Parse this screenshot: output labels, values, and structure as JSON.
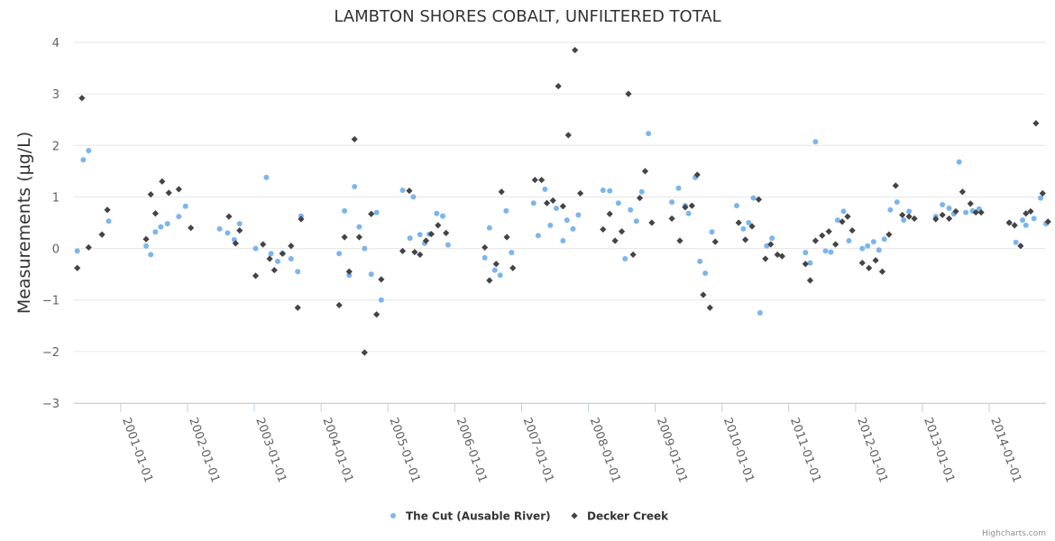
{
  "chart_data": {
    "type": "scatter",
    "title": "LAMBTON SHORES COBALT, UNFILTERED TOTAL",
    "ylabel": "Measurements (µg/L)",
    "xlabel": "",
    "ylim": [
      -3,
      4
    ],
    "yticks": [
      -3,
      -2,
      -1,
      0,
      1,
      2,
      3,
      4
    ],
    "xlim": [
      2000.3,
      2014.85
    ],
    "xticks": [
      {
        "value": 2001.0,
        "label": "2001-01-01"
      },
      {
        "value": 2002.0,
        "label": "2002-01-01"
      },
      {
        "value": 2003.0,
        "label": "2003-01-01"
      },
      {
        "value": 2004.0,
        "label": "2004-01-01"
      },
      {
        "value": 2005.0,
        "label": "2005-01-01"
      },
      {
        "value": 2006.0,
        "label": "2006-01-01"
      },
      {
        "value": 2007.0,
        "label": "2007-01-01"
      },
      {
        "value": 2008.0,
        "label": "2008-01-01"
      },
      {
        "value": 2009.0,
        "label": "2009-01-01"
      },
      {
        "value": 2010.0,
        "label": "2010-01-01"
      },
      {
        "value": 2011.0,
        "label": "2011-01-01"
      },
      {
        "value": 2012.0,
        "label": "2012-01-01"
      },
      {
        "value": 2013.0,
        "label": "2013-01-01"
      },
      {
        "value": 2014.0,
        "label": "2014-01-01"
      }
    ],
    "grid": true,
    "legend_position": "bottom-center",
    "series": [
      {
        "name": "The Cut (Ausable River)",
        "color": "#7cb5ec",
        "marker": "circle",
        "points": [
          [
            2000.35,
            -0.05
          ],
          [
            2000.44,
            1.72
          ],
          [
            2000.52,
            1.9
          ],
          [
            2000.82,
            0.53
          ],
          [
            2001.38,
            0.05
          ],
          [
            2001.45,
            -0.12
          ],
          [
            2001.52,
            0.32
          ],
          [
            2001.6,
            0.42
          ],
          [
            2001.7,
            0.48
          ],
          [
            2001.87,
            0.62
          ],
          [
            2001.97,
            0.82
          ],
          [
            2002.48,
            0.38
          ],
          [
            2002.6,
            0.3
          ],
          [
            2002.7,
            0.17
          ],
          [
            2002.78,
            0.48
          ],
          [
            2003.02,
            0.0
          ],
          [
            2003.18,
            1.38
          ],
          [
            2003.25,
            -0.1
          ],
          [
            2003.35,
            -0.25
          ],
          [
            2003.43,
            -0.1
          ],
          [
            2003.55,
            -0.2
          ],
          [
            2003.65,
            -0.45
          ],
          [
            2003.7,
            0.63
          ],
          [
            2004.27,
            -0.1
          ],
          [
            2004.35,
            0.73
          ],
          [
            2004.42,
            -0.52
          ],
          [
            2004.5,
            1.2
          ],
          [
            2004.57,
            0.42
          ],
          [
            2004.65,
            0.0
          ],
          [
            2004.75,
            -0.5
          ],
          [
            2004.83,
            0.7
          ],
          [
            2004.9,
            -1.0
          ],
          [
            2005.22,
            1.13
          ],
          [
            2005.33,
            0.2
          ],
          [
            2005.38,
            1.0
          ],
          [
            2005.48,
            0.27
          ],
          [
            2005.55,
            0.1
          ],
          [
            2005.62,
            0.28
          ],
          [
            2005.73,
            0.68
          ],
          [
            2005.82,
            0.63
          ],
          [
            2005.9,
            0.07
          ],
          [
            2006.45,
            -0.18
          ],
          [
            2006.52,
            0.4
          ],
          [
            2006.6,
            -0.42
          ],
          [
            2006.68,
            -0.52
          ],
          [
            2006.77,
            0.73
          ],
          [
            2006.85,
            -0.08
          ],
          [
            2007.18,
            0.88
          ],
          [
            2007.25,
            0.25
          ],
          [
            2007.35,
            1.15
          ],
          [
            2007.43,
            0.45
          ],
          [
            2007.52,
            0.78
          ],
          [
            2007.62,
            0.15
          ],
          [
            2007.68,
            0.55
          ],
          [
            2007.77,
            0.38
          ],
          [
            2007.85,
            0.65
          ],
          [
            2008.22,
            1.13
          ],
          [
            2008.32,
            1.12
          ],
          [
            2008.45,
            0.88
          ],
          [
            2008.55,
            -0.2
          ],
          [
            2008.63,
            0.75
          ],
          [
            2008.72,
            0.53
          ],
          [
            2008.8,
            1.1
          ],
          [
            2008.9,
            2.23
          ],
          [
            2009.25,
            0.9
          ],
          [
            2009.35,
            1.17
          ],
          [
            2009.45,
            0.83
          ],
          [
            2009.5,
            0.68
          ],
          [
            2009.6,
            1.38
          ],
          [
            2009.67,
            -0.25
          ],
          [
            2009.75,
            -0.48
          ],
          [
            2009.85,
            0.32
          ],
          [
            2010.22,
            0.83
          ],
          [
            2010.32,
            0.38
          ],
          [
            2010.4,
            0.5
          ],
          [
            2010.47,
            0.98
          ],
          [
            2010.57,
            -1.25
          ],
          [
            2010.67,
            0.05
          ],
          [
            2010.75,
            0.2
          ],
          [
            2011.25,
            -0.08
          ],
          [
            2011.32,
            -0.28
          ],
          [
            2011.4,
            2.07
          ],
          [
            2011.55,
            -0.05
          ],
          [
            2011.63,
            -0.07
          ],
          [
            2011.73,
            0.55
          ],
          [
            2011.82,
            0.72
          ],
          [
            2011.9,
            0.15
          ],
          [
            2012.1,
            0.0
          ],
          [
            2012.18,
            0.05
          ],
          [
            2012.27,
            0.13
          ],
          [
            2012.35,
            -0.03
          ],
          [
            2012.43,
            0.18
          ],
          [
            2012.52,
            0.75
          ],
          [
            2012.62,
            0.9
          ],
          [
            2012.72,
            0.55
          ],
          [
            2012.8,
            0.72
          ],
          [
            2013.2,
            0.62
          ],
          [
            2013.3,
            0.85
          ],
          [
            2013.4,
            0.78
          ],
          [
            2013.47,
            0.67
          ],
          [
            2013.55,
            1.68
          ],
          [
            2013.65,
            0.7
          ],
          [
            2013.75,
            0.73
          ],
          [
            2013.85,
            0.77
          ],
          [
            2014.3,
            0.5
          ],
          [
            2014.4,
            0.12
          ],
          [
            2014.5,
            0.55
          ],
          [
            2014.55,
            0.45
          ],
          [
            2014.67,
            0.58
          ],
          [
            2014.77,
            0.98
          ],
          [
            2014.85,
            0.48
          ]
        ]
      },
      {
        "name": "Decker Creek",
        "color": "#434348",
        "marker": "diamond",
        "points": [
          [
            2000.35,
            -0.38
          ],
          [
            2000.42,
            2.92
          ],
          [
            2000.52,
            0.02
          ],
          [
            2000.72,
            0.27
          ],
          [
            2000.8,
            0.75
          ],
          [
            2001.38,
            0.18
          ],
          [
            2001.45,
            1.05
          ],
          [
            2001.52,
            0.68
          ],
          [
            2001.62,
            1.3
          ],
          [
            2001.72,
            1.08
          ],
          [
            2001.87,
            1.15
          ],
          [
            2002.05,
            0.4
          ],
          [
            2002.62,
            0.62
          ],
          [
            2002.72,
            0.1
          ],
          [
            2002.78,
            0.35
          ],
          [
            2003.02,
            -0.53
          ],
          [
            2003.13,
            0.08
          ],
          [
            2003.23,
            -0.2
          ],
          [
            2003.3,
            -0.42
          ],
          [
            2003.42,
            -0.1
          ],
          [
            2003.55,
            0.05
          ],
          [
            2003.65,
            -1.15
          ],
          [
            2003.7,
            0.57
          ],
          [
            2004.27,
            -1.1
          ],
          [
            2004.35,
            0.22
          ],
          [
            2004.42,
            -0.45
          ],
          [
            2004.5,
            2.12
          ],
          [
            2004.57,
            0.22
          ],
          [
            2004.65,
            -2.02
          ],
          [
            2004.75,
            0.67
          ],
          [
            2004.83,
            -1.28
          ],
          [
            2004.9,
            -0.6
          ],
          [
            2005.22,
            -0.05
          ],
          [
            2005.32,
            1.12
          ],
          [
            2005.4,
            -0.07
          ],
          [
            2005.48,
            -0.12
          ],
          [
            2005.57,
            0.15
          ],
          [
            2005.65,
            0.28
          ],
          [
            2005.75,
            0.45
          ],
          [
            2005.87,
            0.3
          ],
          [
            2006.45,
            0.02
          ],
          [
            2006.52,
            -0.62
          ],
          [
            2006.62,
            -0.3
          ],
          [
            2006.7,
            1.1
          ],
          [
            2006.78,
            0.22
          ],
          [
            2006.87,
            -0.38
          ],
          [
            2007.2,
            1.33
          ],
          [
            2007.3,
            1.33
          ],
          [
            2007.38,
            0.88
          ],
          [
            2007.47,
            0.93
          ],
          [
            2007.55,
            3.15
          ],
          [
            2007.62,
            0.82
          ],
          [
            2007.7,
            2.2
          ],
          [
            2007.8,
            3.85
          ],
          [
            2007.88,
            1.07
          ],
          [
            2008.22,
            0.37
          ],
          [
            2008.32,
            0.67
          ],
          [
            2008.4,
            0.15
          ],
          [
            2008.5,
            0.33
          ],
          [
            2008.6,
            3.0
          ],
          [
            2008.67,
            -0.12
          ],
          [
            2008.77,
            0.98
          ],
          [
            2008.85,
            1.5
          ],
          [
            2008.95,
            0.5
          ],
          [
            2009.25,
            0.58
          ],
          [
            2009.37,
            0.15
          ],
          [
            2009.45,
            0.8
          ],
          [
            2009.55,
            0.83
          ],
          [
            2009.63,
            1.43
          ],
          [
            2009.72,
            -0.9
          ],
          [
            2009.82,
            -1.15
          ],
          [
            2009.9,
            0.13
          ],
          [
            2010.25,
            0.5
          ],
          [
            2010.35,
            0.17
          ],
          [
            2010.45,
            0.43
          ],
          [
            2010.55,
            0.95
          ],
          [
            2010.65,
            -0.2
          ],
          [
            2010.73,
            0.08
          ],
          [
            2010.83,
            -0.12
          ],
          [
            2010.9,
            -0.15
          ],
          [
            2011.25,
            -0.3
          ],
          [
            2011.32,
            -0.62
          ],
          [
            2011.4,
            0.15
          ],
          [
            2011.5,
            0.25
          ],
          [
            2011.6,
            0.33
          ],
          [
            2011.7,
            0.08
          ],
          [
            2011.8,
            0.52
          ],
          [
            2011.88,
            0.62
          ],
          [
            2011.95,
            0.35
          ],
          [
            2012.1,
            -0.28
          ],
          [
            2012.2,
            -0.38
          ],
          [
            2012.3,
            -0.23
          ],
          [
            2012.4,
            -0.45
          ],
          [
            2012.5,
            0.27
          ],
          [
            2012.6,
            1.22
          ],
          [
            2012.7,
            0.65
          ],
          [
            2012.8,
            0.62
          ],
          [
            2012.88,
            0.58
          ],
          [
            2013.2,
            0.57
          ],
          [
            2013.3,
            0.65
          ],
          [
            2013.4,
            0.58
          ],
          [
            2013.5,
            0.72
          ],
          [
            2013.6,
            1.1
          ],
          [
            2013.72,
            0.87
          ],
          [
            2013.8,
            0.7
          ],
          [
            2013.88,
            0.7
          ],
          [
            2014.3,
            0.5
          ],
          [
            2014.38,
            0.45
          ],
          [
            2014.47,
            0.05
          ],
          [
            2014.55,
            0.68
          ],
          [
            2014.62,
            0.72
          ],
          [
            2014.7,
            2.43
          ],
          [
            2014.8,
            1.07
          ],
          [
            2014.88,
            0.52
          ]
        ]
      }
    ]
  },
  "credit": "Highcharts.com"
}
